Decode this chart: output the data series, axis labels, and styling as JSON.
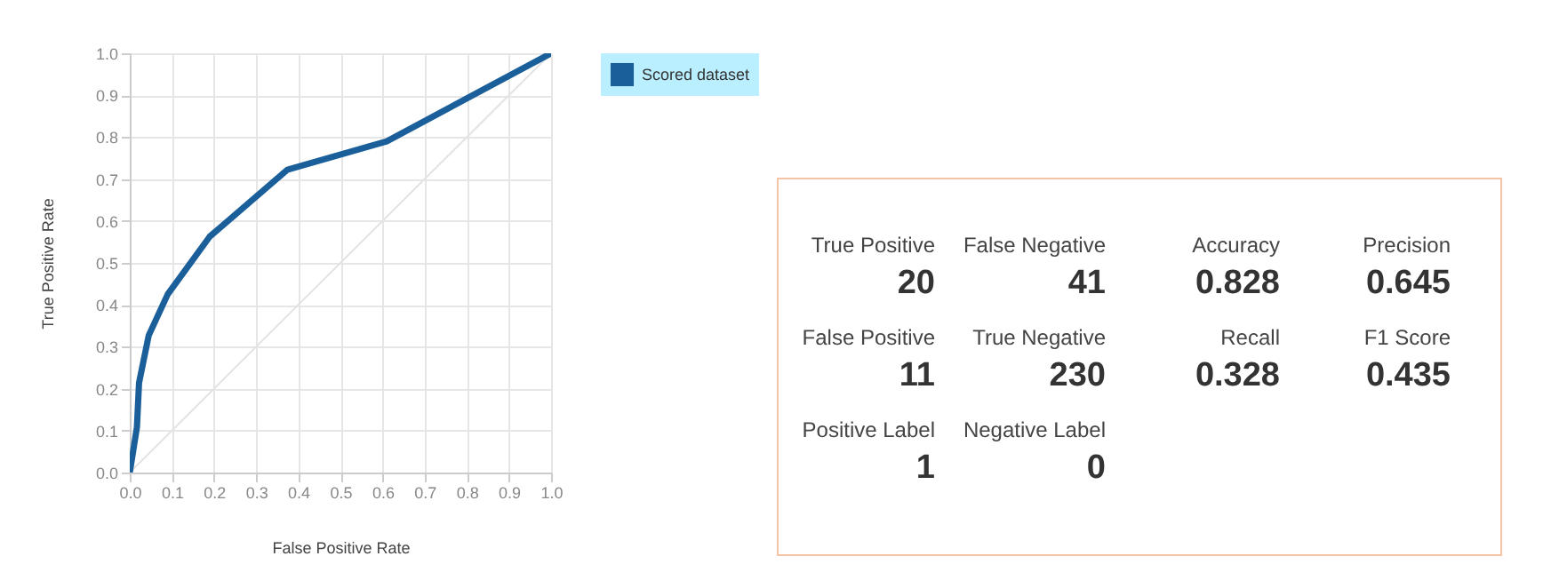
{
  "chart_data": [
    {
      "type": "line",
      "xlabel": "False Positive Rate",
      "ylabel": "True Positive Rate",
      "xlim": [
        0,
        1
      ],
      "ylim": [
        0,
        1
      ],
      "xticks": [
        {
          "value": 0,
          "label": "0.0"
        },
        0.1,
        0.2,
        0.3,
        0.4,
        0.5,
        0.6,
        0.7,
        0.8,
        0.9,
        {
          "value": 1,
          "label": "1.0"
        }
      ],
      "yticks": [
        {
          "value": 0,
          "label": "0.0"
        },
        0.1,
        0.2,
        0.3,
        0.4,
        0.5,
        0.6,
        0.7,
        0.8,
        0.9,
        {
          "value": 1,
          "label": "1.0"
        }
      ],
      "grid": true,
      "legend": "right",
      "line_style": "solid",
      "series": [
        {
          "color": "#e3e3e3",
          "x": [
            0,
            1
          ],
          "values": [
            0,
            1
          ]
        },
        {
          "name": "Scored dataset",
          "color": "#1a5e9a",
          "x": [
            0,
            0.017,
            0.022,
            0.045,
            0.09,
            0.19,
            0.374,
            0.61,
            1
          ],
          "values": [
            0,
            0.108,
            0.214,
            0.327,
            0.425,
            0.563,
            0.722,
            0.79,
            1
          ]
        }
      ]
    },
    {
      "type": "other",
      "annotations": [
        "True Positive",
        "20",
        "False Negative",
        "41",
        "Accuracy",
        "0.828",
        "Precision",
        "0.645",
        "False Positive",
        "11",
        "True Negative",
        "230",
        "Recall",
        "0.328",
        "F1 Score",
        "0.435",
        "Positive Label",
        "1",
        "Negative Label",
        "0"
      ]
    }
  ]
}
